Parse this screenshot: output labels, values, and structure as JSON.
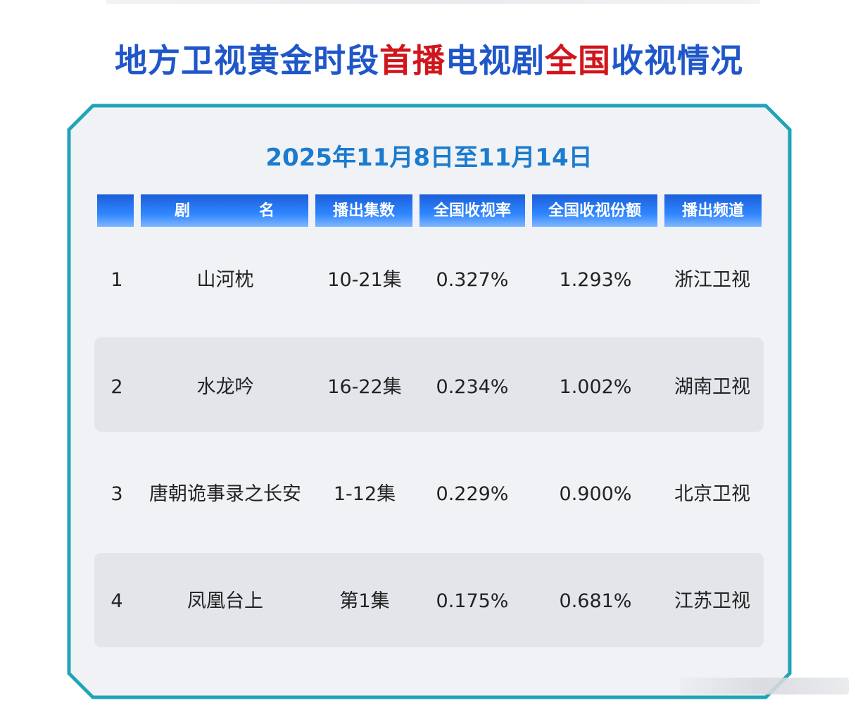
{
  "title": {
    "part1": "地方卫视黄金时段",
    "part2": "首播",
    "part3": "电视剧",
    "part4": "全国",
    "part5": "收视情况"
  },
  "date_range": "2025年11月8日至11月14日",
  "colors": {
    "title_blue": "#1f57c9",
    "title_red": "#d0161c",
    "date_blue": "#1a7bcf",
    "frame_teal": "#20a4b8",
    "header_blue": "#2f86ff",
    "row_stripe": "#e3e5ea"
  },
  "chart_data": {
    "type": "table",
    "columns": [
      "",
      "剧　名",
      "播出集数",
      "全国收视率",
      "全国收视份额",
      "播出频道"
    ],
    "rows": [
      [
        "1",
        "山河枕",
        "10-21集",
        "0.327%",
        "1.293%",
        "浙江卫视"
      ],
      [
        "2",
        "水龙吟",
        "16-22集",
        "0.234%",
        "1.002%",
        "湖南卫视"
      ],
      [
        "3",
        "唐朝诡事录之长安",
        "1-12集",
        "0.229%",
        "0.900%",
        "北京卫视"
      ],
      [
        "4",
        "凤凰台上",
        "第1集",
        "0.175%",
        "0.681%",
        "江苏卫视"
      ]
    ]
  }
}
